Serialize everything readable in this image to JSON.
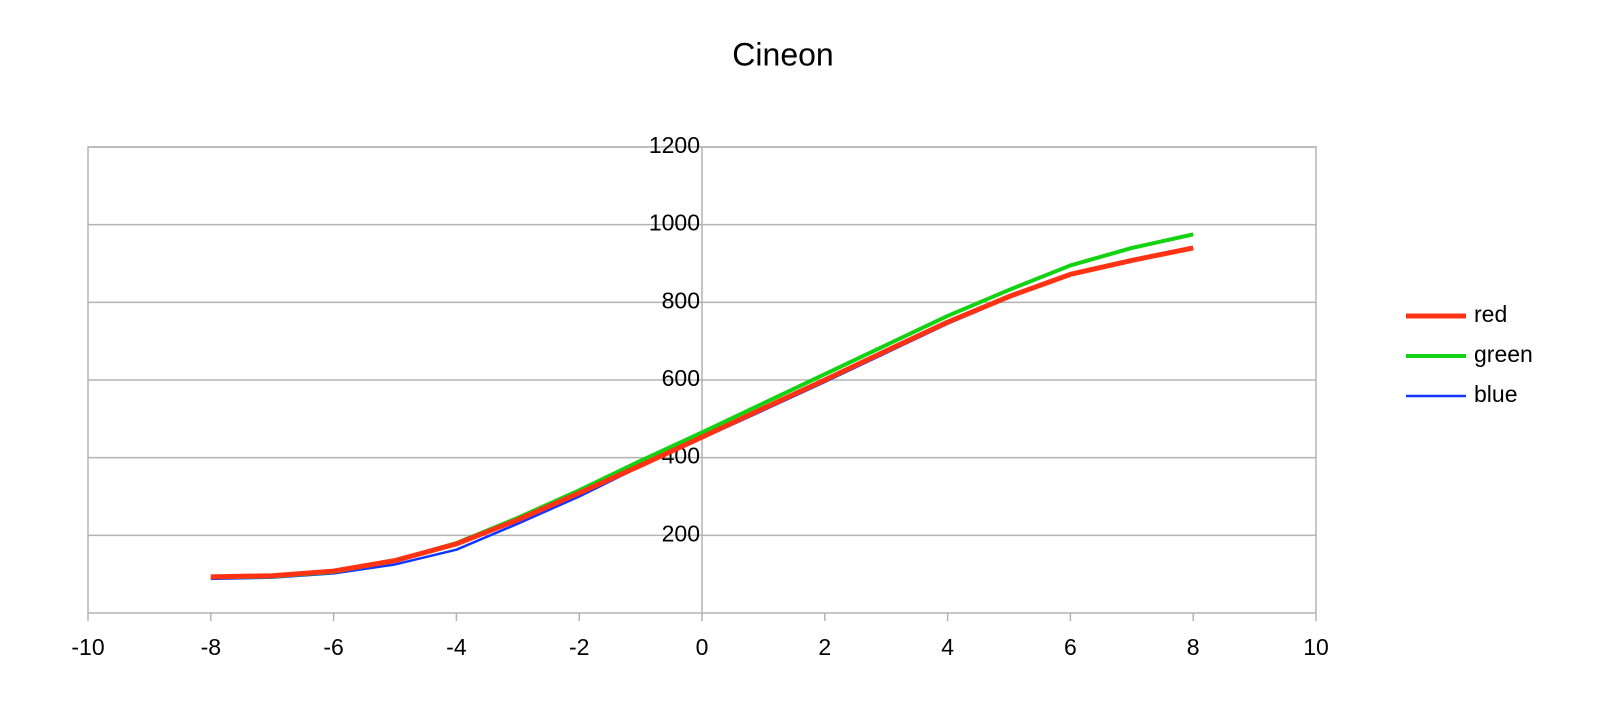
{
  "chart_data": {
    "type": "line",
    "title": "Cineon",
    "x": [
      -8,
      -7,
      -6,
      -5,
      -4,
      -3,
      -2,
      -1,
      0,
      1,
      2,
      3,
      4,
      5,
      6,
      7,
      8
    ],
    "series": [
      {
        "name": "red",
        "color": "#ff3314",
        "values": [
          93,
          96,
          108,
          135,
          178,
          240,
          309,
          380,
          453,
          527,
          600,
          675,
          749,
          815,
          872,
          908,
          940
        ]
      },
      {
        "name": "green",
        "color": "#12d312",
        "values": [
          92,
          94,
          106,
          134,
          180,
          245,
          316,
          392,
          465,
          540,
          615,
          690,
          765,
          832,
          895,
          940,
          975
        ]
      },
      {
        "name": "blue",
        "color": "#1137ff",
        "values": [
          88,
          91,
          102,
          125,
          163,
          230,
          300,
          378,
          450,
          522,
          595,
          670,
          745,
          812,
          870,
          906,
          940
        ]
      }
    ],
    "xlim": [
      -10,
      10
    ],
    "xticks": [
      -10,
      -8,
      -6,
      -4,
      -2,
      0,
      2,
      4,
      6,
      8,
      10
    ],
    "ylim": [
      0,
      1200
    ],
    "yticks": [
      200,
      400,
      600,
      800,
      1000,
      1200
    ],
    "grid": true,
    "legend": "right"
  }
}
